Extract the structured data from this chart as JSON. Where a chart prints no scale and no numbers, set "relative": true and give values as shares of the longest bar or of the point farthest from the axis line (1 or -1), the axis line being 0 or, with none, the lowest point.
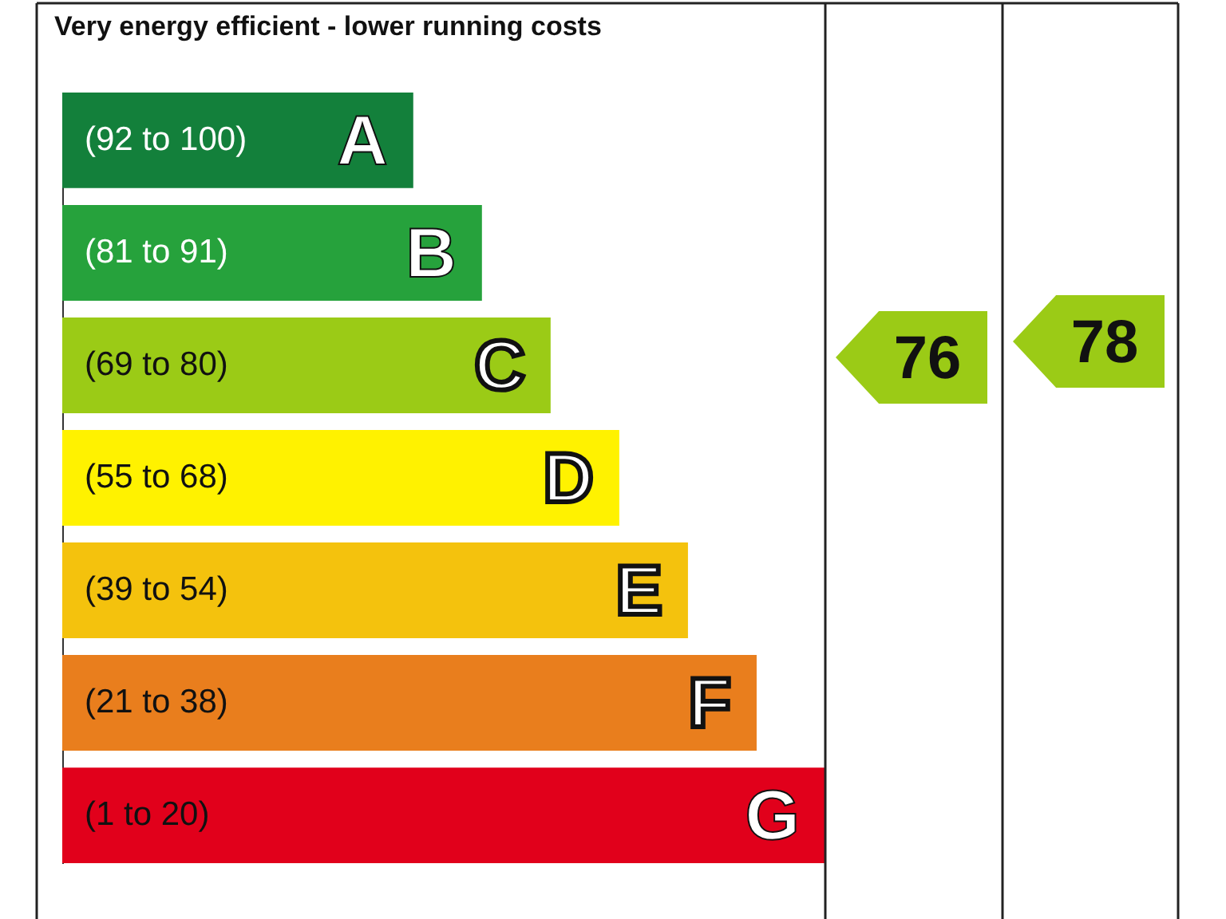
{
  "chart_data": {
    "type": "bar",
    "orientation": "horizontal",
    "relative": true,
    "title": "Very energy efficient - lower running costs",
    "categories": [
      "(92 to 100)",
      "(81 to 91)",
      "(69 to 80)",
      "(55 to 68)",
      "(39 to 54)",
      "(21 to 38)",
      "(1 to 20)"
    ],
    "values": [
      0.46,
      0.55,
      0.64,
      0.73,
      0.82,
      0.91,
      1
    ],
    "colors": [
      "#13803b",
      "#26a23c",
      "#9bcb16",
      "#fff200",
      "#f4c20d",
      "#e97e1d",
      "#e1001b"
    ],
    "annotations": [
      {
        "text": "A",
        "x": 0.46,
        "y": "(92 to 100)"
      },
      {
        "text": "B",
        "x": 0.55,
        "y": "(81 to 91)"
      },
      {
        "text": "C",
        "x": 0.64,
        "y": "(69 to 80)"
      },
      {
        "text": "D",
        "x": 0.73,
        "y": "(55 to 68)"
      },
      {
        "text": "E",
        "x": 0.82,
        "y": "(39 to 54)"
      },
      {
        "text": "F",
        "x": 0.91,
        "y": "(21 to 38)"
      },
      {
        "text": "G",
        "x": 1,
        "y": "(1 to 20)"
      },
      "76",
      "78"
    ]
  }
}
